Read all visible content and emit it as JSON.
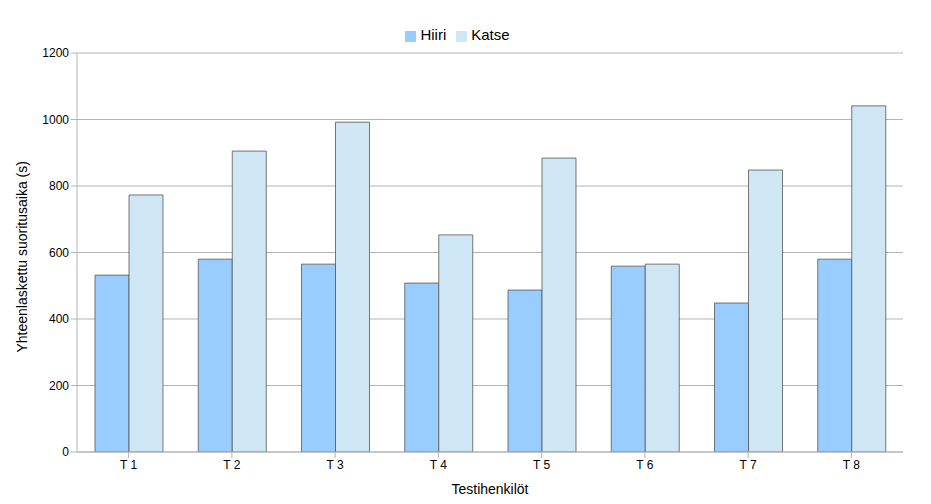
{
  "chart_data": {
    "type": "bar",
    "x_label": "Testihenkilöt",
    "y_label": "Yhteenlaskettu suoritusaika (s)",
    "categories": [
      "T 1",
      "T 2",
      "T 3",
      "T 4",
      "T 5",
      "T 6",
      "T 7",
      "T 8"
    ],
    "series": [
      {
        "name": "Hiiri",
        "color": "#99ccff",
        "values": [
          532,
          580,
          565,
          508,
          487,
          559,
          448,
          580
        ]
      },
      {
        "name": "Katse",
        "color": "#cfe7f5",
        "values": [
          773,
          905,
          992,
          653,
          884,
          565,
          848,
          1041
        ]
      }
    ],
    "ylim": [
      0,
      1200
    ],
    "yticks": [
      0,
      200,
      400,
      600,
      800,
      1000,
      1200
    ],
    "grid": true,
    "legend": "top"
  }
}
